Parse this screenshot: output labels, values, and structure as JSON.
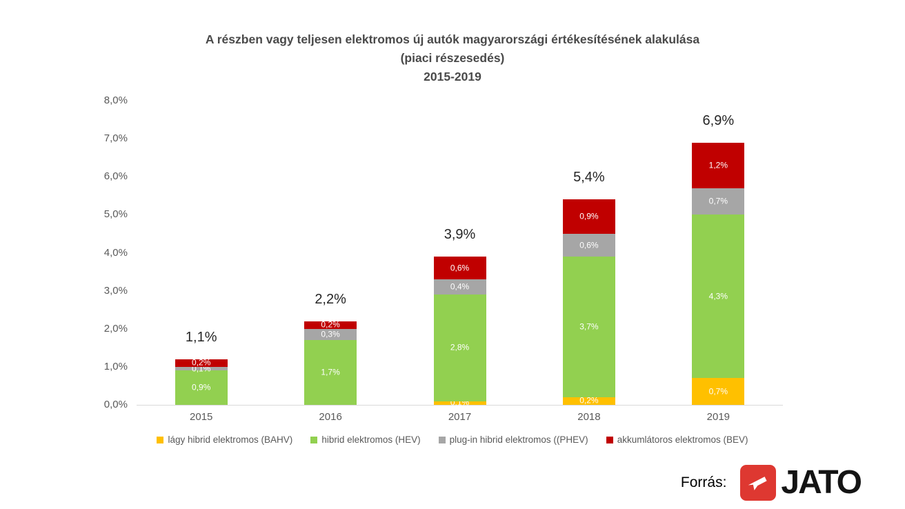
{
  "title": {
    "line1": "A részben vagy teljesen elektromos új autók magyarországi értékesítésének alakulása",
    "line2": "(piaci részesedés)",
    "line3": "2015-2019"
  },
  "chart_data": {
    "type": "bar",
    "stacked": true,
    "title": "A részben vagy teljesen elektromos új autók magyarországi értékesítésének alakulása (piaci részesedés) 2015-2019",
    "categories": [
      "2015",
      "2016",
      "2017",
      "2018",
      "2019"
    ],
    "series": [
      {
        "name": "lágy hibrid elektromos (BAHV)",
        "color": "#FFC000",
        "values": [
          0,
          0,
          0.1,
          0.2,
          0.7
        ],
        "data_labels": [
          "",
          "",
          "0,1%",
          "0,2%",
          "0,7%"
        ]
      },
      {
        "name": "hibrid elektromos (HEV)",
        "color": "#92D050",
        "values": [
          0.9,
          1.7,
          2.8,
          3.7,
          4.3
        ],
        "data_labels": [
          "0,9%",
          "1,7%",
          "2,8%",
          "3,7%",
          "4,3%"
        ]
      },
      {
        "name": "plug-in hibrid elektromos ((PHEV)",
        "color": "#A6A6A6",
        "values": [
          0.1,
          0.3,
          0.4,
          0.6,
          0.7
        ],
        "data_labels": [
          "0,1%",
          "0,3%",
          "0,4%",
          "0,6%",
          "0,7%"
        ]
      },
      {
        "name": "akkumlátoros elektromos (BEV)",
        "color": "#C00000",
        "values": [
          0.2,
          0.2,
          0.6,
          0.9,
          1.2
        ],
        "data_labels": [
          "0,2%",
          "0,2%",
          "0,6%",
          "0,9%",
          "1,2%"
        ]
      }
    ],
    "totals": [
      "1,1%",
      "2,2%",
      "3,9%",
      "5,4%",
      "6,9%"
    ],
    "y_ticks": [
      "0,0%",
      "1,0%",
      "2,0%",
      "3,0%",
      "4,0%",
      "5,0%",
      "6,0%",
      "7,0%",
      "8,0%"
    ],
    "ylim": [
      0,
      8
    ],
    "grid": false,
    "legend_position": "bottom"
  },
  "footer": {
    "source_label": "Forrás:",
    "logo_text": "JATO",
    "logo_color": "#DE3831"
  }
}
